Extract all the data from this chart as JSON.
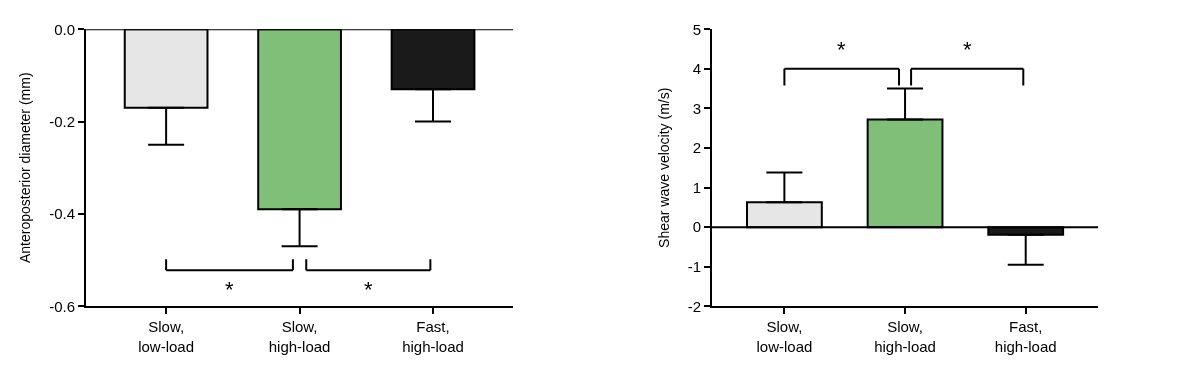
{
  "chart_data": [
    {
      "type": "bar",
      "categories": [
        "Slow,\nlow-load",
        "Slow,\nhigh-load",
        "Fast,\nhigh-load"
      ],
      "values": [
        -0.17,
        -0.39,
        -0.13
      ],
      "colors": [
        "#e6e6e6",
        "#80bf78",
        "#1a1a1a"
      ],
      "errors": [
        [
          -0.25,
          -0.17
        ],
        [
          -0.47,
          -0.39
        ],
        [
          -0.2,
          -0.13
        ]
      ],
      "ylabel": "Anteroposterior diameter (mm)",
      "ylim": [
        -0.6,
        0.0
      ],
      "yticks": [
        {
          "value": -0.6,
          "label": "-0.6"
        },
        {
          "value": -0.4,
          "label": "-0.4"
        },
        {
          "value": -0.2,
          "label": "-0.2"
        },
        {
          "value": 0.0,
          "label": "0.0"
        }
      ],
      "ref_lines": [
        {
          "axis": "y",
          "value": 0.0,
          "color": "#000000"
        }
      ],
      "annotations": [
        "*",
        "*"
      ]
    },
    {
      "type": "bar",
      "categories": [
        "Slow,\nlow-load",
        "Slow,\nhigh-load",
        "Fast,\nhigh-load"
      ],
      "values": [
        0.63,
        2.72,
        -0.19
      ],
      "colors": [
        "#e6e6e6",
        "#80bf78",
        "#1a1a1a"
      ],
      "errors": [
        [
          0.63,
          1.38
        ],
        [
          2.72,
          3.5
        ],
        [
          -0.95,
          -0.19
        ]
      ],
      "ylabel": "Shear wave velocity (m/s)",
      "ylim": [
        -2,
        5
      ],
      "yticks": [
        -2,
        -1,
        0,
        1,
        2,
        3,
        4,
        5
      ],
      "ref_lines": [
        {
          "axis": "y",
          "value": 0,
          "color": "#000000"
        }
      ],
      "annotations": [
        "*",
        "*"
      ]
    }
  ]
}
